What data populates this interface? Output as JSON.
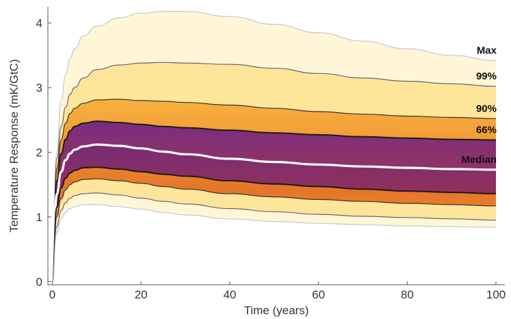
{
  "chart_data": {
    "type": "line",
    "xlabel": "Time (years)",
    "ylabel": "Temperature Response (mK/GtC)",
    "xlim": [
      -1,
      102
    ],
    "ylim": [
      -0.05,
      4.25
    ],
    "x_ticks": [
      "0",
      "20",
      "40",
      "60",
      "80",
      "100"
    ],
    "y_ticks": [
      "0",
      "1",
      "2",
      "3",
      "4"
    ],
    "grid": false,
    "x": [
      0,
      1,
      2,
      3,
      4,
      5,
      7,
      10,
      15,
      20,
      25,
      30,
      40,
      50,
      60,
      70,
      80,
      90,
      100
    ],
    "series": [
      {
        "name": "Max",
        "color": "#c6c6cc",
        "values": [
          0,
          2.0,
          2.8,
          3.2,
          3.45,
          3.6,
          3.8,
          3.95,
          4.08,
          4.15,
          4.18,
          4.18,
          4.1,
          3.98,
          3.85,
          3.72,
          3.6,
          3.5,
          3.42
        ]
      },
      {
        "name": "99%",
        "color": "#666670",
        "values": [
          0,
          1.9,
          2.4,
          2.7,
          2.9,
          3.0,
          3.15,
          3.28,
          3.35,
          3.38,
          3.39,
          3.38,
          3.36,
          3.3,
          3.22,
          3.15,
          3.1,
          3.06,
          3.02
        ]
      },
      {
        "name": "90%",
        "color": "#333333",
        "values": [
          0,
          1.75,
          2.2,
          2.45,
          2.6,
          2.68,
          2.76,
          2.81,
          2.82,
          2.8,
          2.79,
          2.77,
          2.73,
          2.68,
          2.63,
          2.59,
          2.56,
          2.54,
          2.52
        ]
      },
      {
        "name": "66%",
        "color": "#1a1a1a",
        "values": [
          0,
          1.55,
          1.98,
          2.2,
          2.33,
          2.4,
          2.45,
          2.48,
          2.46,
          2.43,
          2.4,
          2.38,
          2.34,
          2.3,
          2.27,
          2.24,
          2.22,
          2.2,
          2.19
        ]
      },
      {
        "name": "Median",
        "color": "#ffffff",
        "values": [
          0,
          1.35,
          1.7,
          1.88,
          1.98,
          2.04,
          2.09,
          2.12,
          2.1,
          2.06,
          2.01,
          1.97,
          1.9,
          1.85,
          1.81,
          1.78,
          1.76,
          1.74,
          1.73
        ]
      },
      {
        "name": "",
        "color": "#1a1a1a",
        "values": [
          0,
          1.15,
          1.45,
          1.6,
          1.68,
          1.72,
          1.76,
          1.77,
          1.74,
          1.7,
          1.66,
          1.63,
          1.56,
          1.51,
          1.47,
          1.43,
          1.4,
          1.38,
          1.36
        ]
      },
      {
        "name": "",
        "color": "#333333",
        "values": [
          0,
          1.0,
          1.28,
          1.42,
          1.5,
          1.54,
          1.58,
          1.59,
          1.56,
          1.52,
          1.47,
          1.43,
          1.36,
          1.31,
          1.27,
          1.24,
          1.21,
          1.19,
          1.17
        ]
      },
      {
        "name": "",
        "color": "#666670",
        "values": [
          0,
          0.85,
          1.1,
          1.22,
          1.29,
          1.33,
          1.36,
          1.37,
          1.34,
          1.29,
          1.24,
          1.2,
          1.13,
          1.08,
          1.04,
          1.01,
          0.99,
          0.97,
          0.95
        ]
      },
      {
        "name": "",
        "color": "#c6c6cc",
        "values": [
          0,
          0.75,
          0.97,
          1.07,
          1.13,
          1.16,
          1.19,
          1.19,
          1.16,
          1.12,
          1.07,
          1.03,
          0.97,
          0.93,
          0.9,
          0.88,
          0.86,
          0.85,
          0.84
        ]
      }
    ],
    "bands": [
      {
        "between": [
          "Max",
          "99%"
        ],
        "color": "#fff6d8"
      },
      {
        "between": [
          "99%",
          "90%"
        ],
        "color": "#fde59a"
      },
      {
        "between": [
          "90%",
          "66%"
        ],
        "color": "#f7b13e"
      },
      {
        "between": [
          "66%",
          "Median"
        ],
        "color": "#6d2a8c"
      },
      {
        "between": [
          "Median",
          5
        ],
        "color": "#5b2490"
      },
      {
        "between": [
          5,
          6
        ],
        "color": "#f4a133"
      },
      {
        "between": [
          6,
          7
        ],
        "color": "#fde59a"
      },
      {
        "between": [
          7,
          8
        ],
        "color": "#fff6d8"
      }
    ],
    "line_labels": [
      "Max",
      "99%",
      "90%",
      "66%",
      "Median"
    ]
  }
}
